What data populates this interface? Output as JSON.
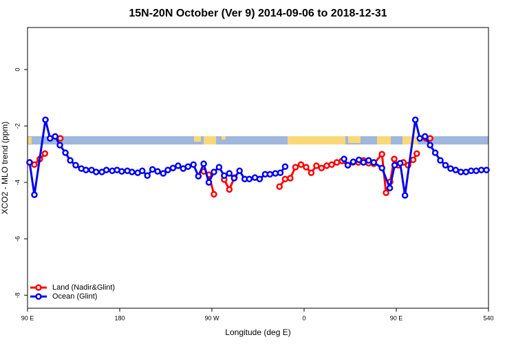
{
  "chart_data": {
    "type": "line",
    "title": "15N-20N October (Ver 9)   2014-09-06 to 2018-12-31",
    "x_label": "Longitude (deg E)",
    "y_label": "XCO2 - MLO trend (ppm)",
    "xlim": [
      90,
      540
    ],
    "xticks": [
      {
        "value": 90,
        "label": "90 E"
      },
      180,
      {
        "value": 270,
        "label": "90 W"
      },
      {
        "value": 360,
        "label": "0"
      },
      {
        "value": 450,
        "label": "90 E"
      },
      540
    ],
    "ylim": [
      -8.46,
      1.49
    ],
    "yticks": [
      0,
      -2,
      -4,
      -6,
      -8
    ],
    "legend": "bottom-left",
    "series": [
      {
        "name": "Land (Nadir&Glint)",
        "color": "#ff0000",
        "x": [
          92,
          96.7,
          102,
          107,
          114,
          122,
          250,
          262,
          267,
          272,
          277,
          282,
          287,
          292,
          314,
          336,
          341.5,
          346.5,
          351.6,
          357,
          362,
          367,
          372,
          377,
          382,
          387,
          392,
          397,
          402.7,
          407.7,
          413,
          418,
          423,
          428,
          436,
          440,
          444,
          448,
          452,
          457,
          461.5,
          466.5,
          470,
          474,
          479,
          483
        ],
        "values": [
          -3.29,
          -3.37,
          -3.17,
          -2.98,
          null,
          -2.44,
          null,
          -3.61,
          -3.73,
          -4.42,
          null,
          -3.9,
          -4.25,
          -3.83,
          null,
          -4.15,
          -3.88,
          -3.85,
          -3.46,
          -3.37,
          -3.46,
          -3.66,
          -3.41,
          -3.49,
          -3.41,
          -3.37,
          -3.29,
          -3.24,
          -3.39,
          -3.29,
          -3.29,
          -3.22,
          -3.32,
          -3.34,
          -3.0,
          -4.37,
          -3.98,
          -3.17,
          -3.39,
          -3.29,
          -3.39,
          -3.2,
          -2.98,
          null,
          -2.44,
          -2.44
        ]
      },
      {
        "name": "Ocean (Glint)",
        "color": "#0000ee",
        "x": [
          92,
          96.7,
          107.5,
          112,
          117,
          121.6,
          127,
          131.7,
          137,
          142.5,
          147,
          152.5,
          157,
          162.6,
          167,
          172.7,
          177.4,
          182,
          187.5,
          192,
          197.6,
          202,
          207,
          212,
          217,
          222.5,
          227,
          232,
          237,
          242,
          246.7,
          252,
          256.8,
          262,
          267,
          272,
          277,
          282,
          287,
          291.7,
          297,
          302,
          306.5,
          312,
          316.6,
          322,
          326.7,
          332,
          336.8,
          341.5,
          370,
          399,
          402.7,
          408,
          413.5,
          418,
          423,
          428,
          436,
          443.7,
          448.4,
          453.8,
          458.5,
          468.6,
          473,
          478,
          483,
          488,
          493,
          498,
          503,
          508,
          513,
          518,
          523,
          528,
          533,
          538
        ],
        "values": [
          -3.29,
          -4.44,
          -1.78,
          -2.44,
          -2.37,
          -2.68,
          -2.95,
          -3.22,
          -3.39,
          -3.51,
          -3.56,
          -3.56,
          -3.63,
          -3.63,
          -3.56,
          -3.59,
          -3.56,
          -3.61,
          -3.59,
          -3.63,
          -3.66,
          -3.59,
          -3.76,
          -3.54,
          -3.61,
          -3.68,
          -3.56,
          -3.49,
          -3.41,
          -3.51,
          -3.44,
          -3.37,
          -3.78,
          -3.34,
          -4.0,
          -3.63,
          -3.46,
          -3.76,
          -3.68,
          -3.85,
          -3.59,
          -3.88,
          -3.88,
          -3.83,
          -3.88,
          -3.71,
          -3.71,
          -3.68,
          -3.66,
          -3.44,
          null,
          -3.17,
          -3.39,
          -3.27,
          -3.2,
          -3.29,
          -3.22,
          -3.29,
          -3.49,
          -4.2,
          -3.39,
          -3.32,
          -4.46,
          -1.78,
          -2.44,
          -2.37,
          -2.68,
          -2.95,
          -3.22,
          -3.39,
          -3.51,
          -3.56,
          -3.63,
          -3.63,
          -3.59,
          -3.59,
          -3.56,
          -3.56
        ]
      }
    ]
  }
}
